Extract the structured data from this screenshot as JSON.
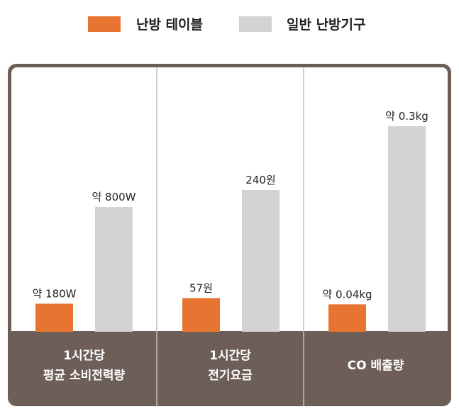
{
  "legend": {
    "items": [
      {
        "label": "난방 테이블",
        "color": "#e87431"
      },
      {
        "label": "일반 난방기구",
        "color": "#d3d3d3"
      }
    ]
  },
  "colors": {
    "frame": "#6d5e58",
    "divider": "#bfbfbf",
    "label_text": "#ffffff",
    "value_text": "#222222"
  },
  "chart_data": [
    {
      "type": "bar",
      "category_label": [
        "1시간당",
        "평균 소비전력량"
      ],
      "unit": "W",
      "series": [
        {
          "name": "난방 테이블",
          "value": 180,
          "label": "약 180W"
        },
        {
          "name": "일반 난방기구",
          "value": 800,
          "label": "약 800W"
        }
      ]
    },
    {
      "type": "bar",
      "category_label": [
        "1시간당",
        "전기요금"
      ],
      "unit": "원",
      "series": [
        {
          "name": "난방 테이블",
          "value": 57,
          "label": "57원"
        },
        {
          "name": "일반 난방기구",
          "value": 240,
          "label": "240원"
        }
      ]
    },
    {
      "type": "bar",
      "category_label": [
        "CO 배출량"
      ],
      "unit": "kg",
      "series": [
        {
          "name": "난방 테이블",
          "value": 0.04,
          "label": "약 0.04kg"
        },
        {
          "name": "일반 난방기구",
          "value": 0.3,
          "label": "약 0.3kg"
        }
      ]
    }
  ]
}
